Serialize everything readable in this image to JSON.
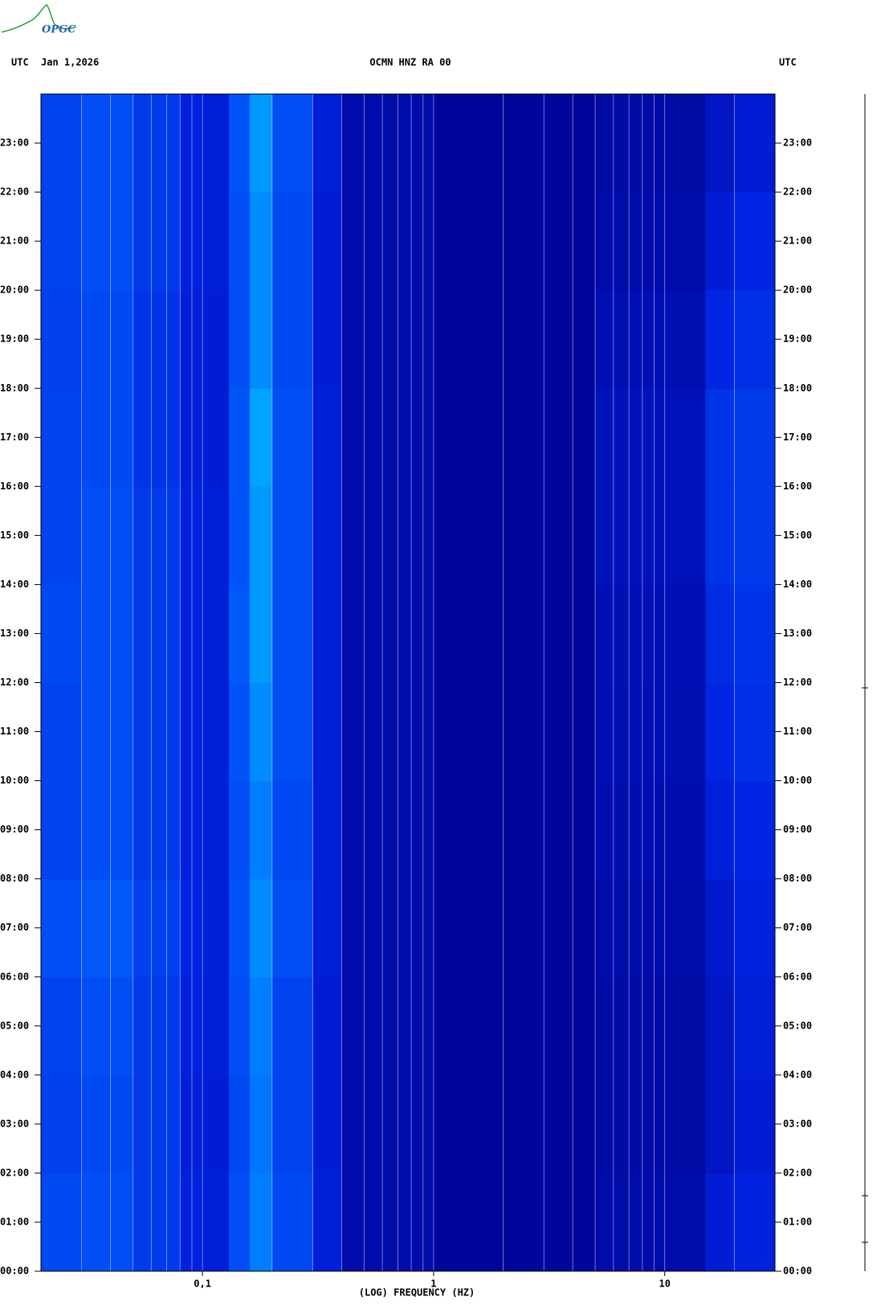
{
  "logo": "OPGC",
  "chart_data": {
    "type": "heatmap",
    "header_left": "UTC",
    "date": "Jan 1,2026",
    "title": "OCMN HNZ RA 00",
    "header_right": "UTC",
    "xlabel": "(LOG) FREQUENCY (HZ)",
    "xscale": "log",
    "xlim": [
      0.02,
      30
    ],
    "xticks": [
      {
        "value": 0.1,
        "label": "0,1"
      },
      1,
      10
    ],
    "xgrid": [
      0.03,
      0.04,
      0.05,
      0.06,
      0.07,
      0.08,
      0.09,
      0.1,
      0.2,
      0.3,
      0.4,
      0.5,
      0.6,
      0.7,
      0.8,
      0.9,
      1,
      2,
      3,
      4,
      5,
      6,
      7,
      8,
      9,
      10,
      20
    ],
    "ylim": [
      0,
      24
    ],
    "yticks": [
      {
        "value": 0,
        "label": "00:00"
      },
      {
        "value": 1,
        "label": "01:00"
      },
      {
        "value": 2,
        "label": "02:00"
      },
      {
        "value": 3,
        "label": "03:00"
      },
      {
        "value": 4,
        "label": "04:00"
      },
      {
        "value": 5,
        "label": "05:00"
      },
      {
        "value": 6,
        "label": "06:00"
      },
      {
        "value": 7,
        "label": "07:00"
      },
      {
        "value": 8,
        "label": "08:00"
      },
      {
        "value": 9,
        "label": "09:00"
      },
      {
        "value": 10,
        "label": "10:00"
      },
      {
        "value": 11,
        "label": "11:00"
      },
      {
        "value": 12,
        "label": "12:00"
      },
      {
        "value": 13,
        "label": "13:00"
      },
      {
        "value": 14,
        "label": "14:00"
      },
      {
        "value": 15,
        "label": "15:00"
      },
      {
        "value": 16,
        "label": "16:00"
      },
      {
        "value": 17,
        "label": "17:00"
      },
      {
        "value": 18,
        "label": "18:00"
      },
      {
        "value": 19,
        "label": "19:00"
      },
      {
        "value": 20,
        "label": "20:00"
      },
      {
        "value": 21,
        "label": "21:00"
      },
      {
        "value": 22,
        "label": "22:00"
      },
      {
        "value": 23,
        "label": "23:00"
      }
    ],
    "freq_edges": [
      0.02,
      0.03,
      0.05,
      0.08,
      0.1,
      0.13,
      0.16,
      0.2,
      0.3,
      0.4,
      1,
      5,
      15,
      20,
      30
    ],
    "time_edges": [
      0,
      2,
      4,
      6,
      8,
      10,
      12,
      14,
      16,
      18,
      20,
      22,
      24
    ],
    "colormap": [
      "#00008c",
      "#0022e0",
      "#0066ff",
      "#00ffff"
    ],
    "values": [
      [
        0.52,
        0.55,
        0.45,
        0.32,
        0.3,
        0.55,
        0.72,
        0.52,
        0.3,
        0.12,
        0.06,
        0.12,
        0.28,
        0.32
      ],
      [
        0.48,
        0.52,
        0.45,
        0.3,
        0.28,
        0.52,
        0.7,
        0.5,
        0.28,
        0.12,
        0.06,
        0.1,
        0.22,
        0.28
      ],
      [
        0.5,
        0.55,
        0.45,
        0.32,
        0.3,
        0.55,
        0.72,
        0.5,
        0.28,
        0.12,
        0.06,
        0.1,
        0.22,
        0.3
      ],
      [
        0.55,
        0.6,
        0.48,
        0.34,
        0.3,
        0.58,
        0.75,
        0.55,
        0.3,
        0.12,
        0.06,
        0.12,
        0.25,
        0.32
      ],
      [
        0.5,
        0.55,
        0.45,
        0.32,
        0.3,
        0.55,
        0.72,
        0.52,
        0.3,
        0.12,
        0.06,
        0.14,
        0.3,
        0.35
      ],
      [
        0.5,
        0.55,
        0.45,
        0.32,
        0.3,
        0.58,
        0.75,
        0.55,
        0.3,
        0.12,
        0.06,
        0.15,
        0.35,
        0.4
      ],
      [
        0.52,
        0.55,
        0.45,
        0.32,
        0.3,
        0.6,
        0.78,
        0.55,
        0.3,
        0.12,
        0.06,
        0.16,
        0.38,
        0.42
      ],
      [
        0.5,
        0.55,
        0.45,
        0.32,
        0.3,
        0.58,
        0.78,
        0.55,
        0.3,
        0.12,
        0.06,
        0.18,
        0.42,
        0.45
      ],
      [
        0.5,
        0.52,
        0.42,
        0.3,
        0.28,
        0.58,
        0.8,
        0.55,
        0.3,
        0.12,
        0.06,
        0.18,
        0.42,
        0.45
      ],
      [
        0.48,
        0.52,
        0.42,
        0.3,
        0.28,
        0.55,
        0.75,
        0.52,
        0.28,
        0.12,
        0.06,
        0.15,
        0.35,
        0.4
      ],
      [
        0.5,
        0.55,
        0.45,
        0.32,
        0.3,
        0.55,
        0.75,
        0.52,
        0.28,
        0.12,
        0.06,
        0.12,
        0.28,
        0.35
      ],
      [
        0.5,
        0.55,
        0.45,
        0.32,
        0.3,
        0.58,
        0.78,
        0.55,
        0.3,
        0.12,
        0.06,
        0.1,
        0.22,
        0.28
      ]
    ]
  }
}
